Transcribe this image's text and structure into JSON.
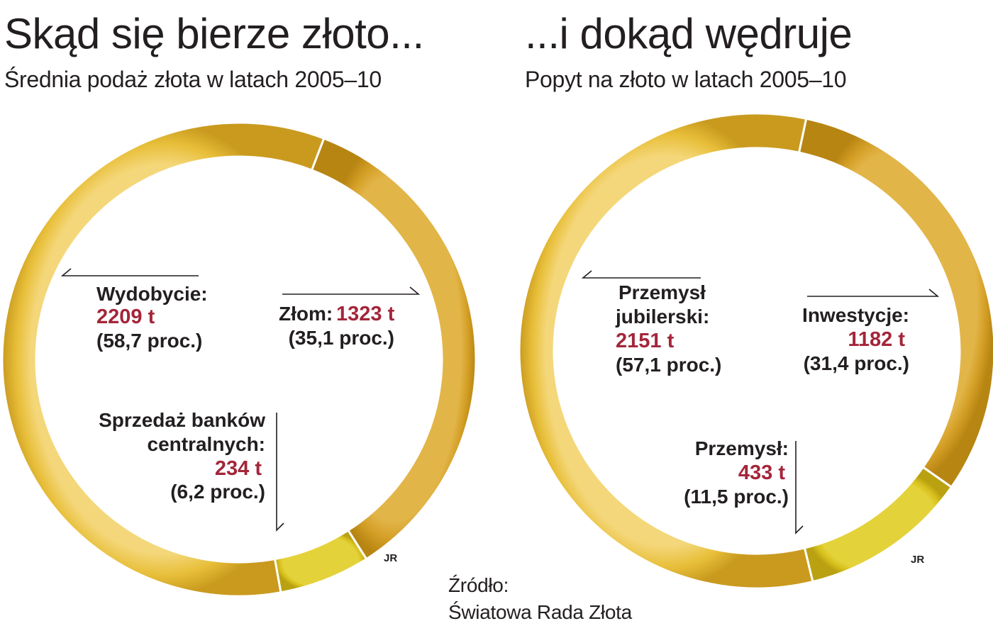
{
  "left": {
    "title": "Skąd się bierze złoto...",
    "subtitle": "Średnia podaż złota w latach 2005–10"
  },
  "right": {
    "title": "...i dokąd wędruje",
    "subtitle": "Popyt na złoto w latach 2005–10"
  },
  "chart_data": [
    {
      "type": "pie",
      "variant": "donut",
      "title": "Skąd się bierze złoto...",
      "subtitle": "Średnia podaż złota w latach 2005–10",
      "slices": [
        {
          "name": "Wydobycie:",
          "value": 2209,
          "value_label": "2209 t",
          "percent": 58.7,
          "percent_label": "(58,7 proc.)",
          "color": "#e8c24a"
        },
        {
          "name": "Złom:",
          "value": 1323,
          "value_label": "1323 t",
          "percent": 35.1,
          "percent_label": "(35,1 proc.)",
          "color": "#d9a82c"
        },
        {
          "name": "Sprzedaż banków centralnych:",
          "value": 234,
          "value_label": "234 t",
          "percent": 6.2,
          "percent_label": "(6,2 proc.)",
          "color": "#d6c020"
        }
      ],
      "credit": "JR"
    },
    {
      "type": "pie",
      "variant": "donut",
      "title": "...i dokąd wędruje",
      "subtitle": "Popyt na złoto w latach 2005–10",
      "slices": [
        {
          "name": "Przemysł jubilerski:",
          "value": 2151,
          "value_label": "2151 t",
          "percent": 57.1,
          "percent_label": "(57,1 proc.)",
          "color": "#e8c24a"
        },
        {
          "name": "Inwestycje:",
          "value": 1182,
          "value_label": "1182 t",
          "percent": 31.4,
          "percent_label": "(31,4 proc.)",
          "color": "#d9a82c"
        },
        {
          "name": "Przemysł:",
          "value": 433,
          "value_label": "433 t",
          "percent": 11.5,
          "percent_label": "(11,5 proc.)",
          "color": "#d6c020"
        }
      ],
      "credit": "JR"
    }
  ],
  "labels": {
    "left": {
      "mining_name": "Wydobycie:",
      "scrap_name": "Złom:",
      "banks_name_1": "Sprzedaż banków",
      "banks_name_2": "centralnych:"
    },
    "right": {
      "jewelry_name_1": "Przemysł",
      "jewelry_name_2": "jubilerski:",
      "investment_name": "Inwestycje:",
      "industry_name": "Przemysł:"
    }
  },
  "source": {
    "label": "Źródło:",
    "name": "Światowa Rada Złota"
  }
}
